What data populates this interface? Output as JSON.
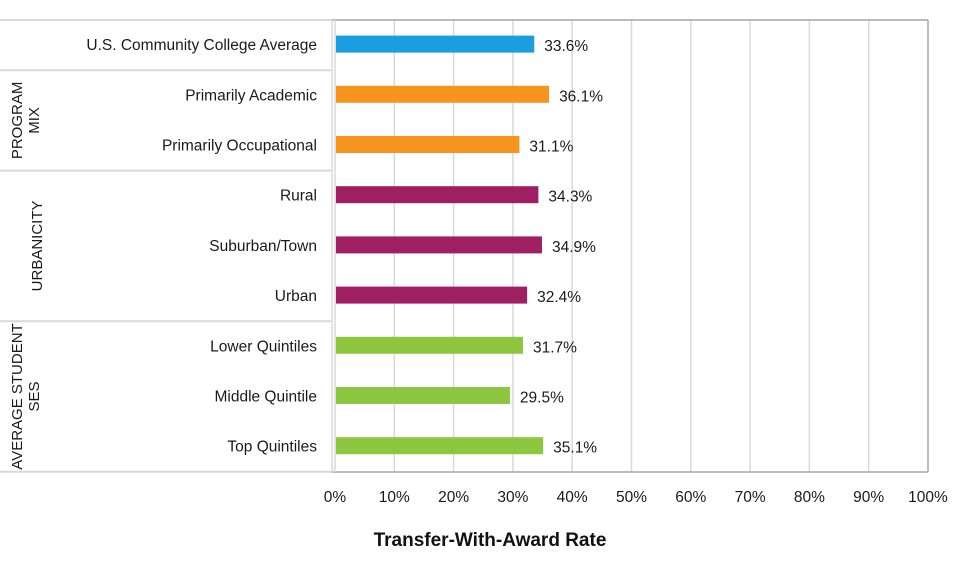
{
  "chart_data": {
    "type": "bar",
    "orientation": "horizontal",
    "title": "",
    "xlabel": "Transfer-With-Award Rate",
    "ylabel": "",
    "xlim": [
      0,
      100
    ],
    "x_ticks": [
      "0%",
      "10%",
      "20%",
      "30%",
      "40%",
      "50%",
      "60%",
      "70%",
      "80%",
      "90%",
      "100%"
    ],
    "grid": "vertical",
    "legend": "none",
    "groups": [
      {
        "name": "",
        "lines": [],
        "color": "#1b9de2",
        "items": [
          {
            "category": "U.S. Community College Average",
            "value": 33.6,
            "label": "33.6%"
          }
        ]
      },
      {
        "name": "PROGRAM MIX",
        "lines": [
          "PROGRAM",
          "MIX"
        ],
        "color": "#f7941d",
        "items": [
          {
            "category": "Primarily Academic",
            "value": 36.1,
            "label": "36.1%"
          },
          {
            "category": "Primarily Occupational",
            "value": 31.1,
            "label": "31.1%"
          }
        ]
      },
      {
        "name": "URBANICITY",
        "lines": [
          "URBANICITY"
        ],
        "color": "#a01e62",
        "items": [
          {
            "category": "Rural",
            "value": 34.3,
            "label": "34.3%"
          },
          {
            "category": "Suburban/Town",
            "value": 34.9,
            "label": "34.9%"
          },
          {
            "category": "Urban",
            "value": 32.4,
            "label": "32.4%"
          }
        ]
      },
      {
        "name": "AVERAGE STUDENT SES",
        "lines": [
          "AVERAGE STUDENT",
          "SES"
        ],
        "color": "#8dc63f",
        "items": [
          {
            "category": "Lower Quintiles",
            "value": 31.7,
            "label": "31.7%"
          },
          {
            "category": "Middle Quintile",
            "value": 29.5,
            "label": "29.5%"
          },
          {
            "category": "Top Quintiles",
            "value": 35.1,
            "label": "35.1%"
          }
        ]
      }
    ]
  }
}
